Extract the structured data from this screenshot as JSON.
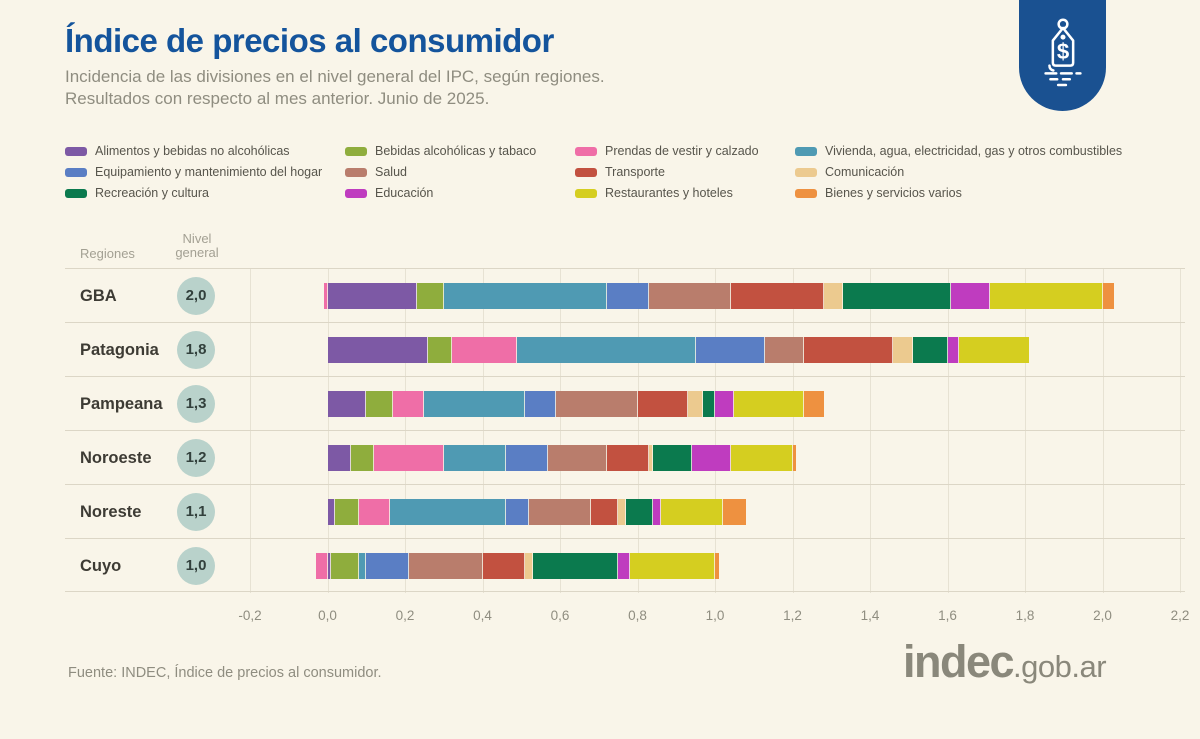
{
  "header": {
    "title": "Índice de precios al consumidor",
    "subtitle1": "Incidencia de las divisiones en el nivel general del IPC, según regiones.",
    "subtitle2": "Resultados con respecto al mes anterior. Junio de 2025.",
    "logo_icon": "price-tag-icon",
    "logo_color": "#1a5191"
  },
  "table": {
    "regions_header": "Regiones",
    "level_header_line1": "Nivel",
    "level_header_line2": "general"
  },
  "legend": {
    "columns": [
      [
        0,
        4,
        8
      ],
      [
        1,
        5,
        9
      ],
      [
        2,
        6,
        10
      ],
      [
        3,
        7,
        11
      ]
    ]
  },
  "chart_data": {
    "type": "bar",
    "orientation": "horizontal-stacked",
    "title": "Índice de precios al consumidor",
    "categories": [
      "Alimentos y bebidas no alcohólicas",
      "Bebidas alcohólicas y tabaco",
      "Prendas de vestir y calzado",
      "Vivienda, agua, electricidad, gas y otros combustibles",
      "Equipamiento y mantenimiento del hogar",
      "Salud",
      "Transporte",
      "Comunicación",
      "Recreación y cultura",
      "Educación",
      "Restaurantes y hoteles",
      "Bienes y servicios varios"
    ],
    "colors": [
      "#7d59a5",
      "#8fad3d",
      "#ef6ea7",
      "#4f9ab3",
      "#5a7ec4",
      "#b97d6c",
      "#c25140",
      "#ecca8f",
      "#0b7a4e",
      "#bf3cbf",
      "#d5ce20",
      "#ee9140"
    ],
    "regions": [
      {
        "name": "GBA",
        "level": "2,0",
        "values": [
          0.23,
          0.07,
          -0.01,
          0.42,
          0.11,
          0.21,
          0.24,
          0.05,
          0.28,
          0.1,
          0.29,
          0.03
        ]
      },
      {
        "name": "Patagonia",
        "level": "1,8",
        "values": [
          0.26,
          0.06,
          0.17,
          0.46,
          0.18,
          0.1,
          0.23,
          0.05,
          0.09,
          0.03,
          0.18,
          0.0
        ]
      },
      {
        "name": "Pampeana",
        "level": "1,3",
        "values": [
          0.1,
          0.07,
          0.08,
          0.26,
          0.08,
          0.21,
          0.13,
          0.04,
          0.03,
          0.05,
          0.18,
          0.05
        ]
      },
      {
        "name": "Noroeste",
        "level": "1,2",
        "values": [
          0.06,
          0.06,
          0.18,
          0.16,
          0.11,
          0.15,
          0.11,
          0.01,
          0.1,
          0.1,
          0.16,
          0.01
        ]
      },
      {
        "name": "Noreste",
        "level": "1,1",
        "values": [
          0.02,
          0.06,
          0.08,
          0.3,
          0.06,
          0.16,
          0.07,
          0.02,
          0.07,
          0.02,
          0.16,
          0.06
        ]
      },
      {
        "name": "Cuyo",
        "level": "1,0",
        "values": [
          0.01,
          0.07,
          -0.03,
          0.02,
          0.11,
          0.19,
          0.11,
          0.02,
          0.22,
          0.03,
          0.22,
          0.01
        ]
      }
    ],
    "x_ticks": [
      "-0,2",
      "0,0",
      "0,2",
      "0,4",
      "0,6",
      "0,8",
      "1,0",
      "1,2",
      "1,4",
      "1,6",
      "1,8",
      "2,0",
      "2,2"
    ],
    "xlim": [
      -0.2,
      2.2
    ],
    "legend_position": "top",
    "grid": true,
    "badge_color": "#b9d2cb"
  },
  "footer": {
    "source": "Fuente: INDEC, Índice de precios al consumidor.",
    "brand_main": "indec",
    "brand_suffix": ".gob.ar"
  }
}
